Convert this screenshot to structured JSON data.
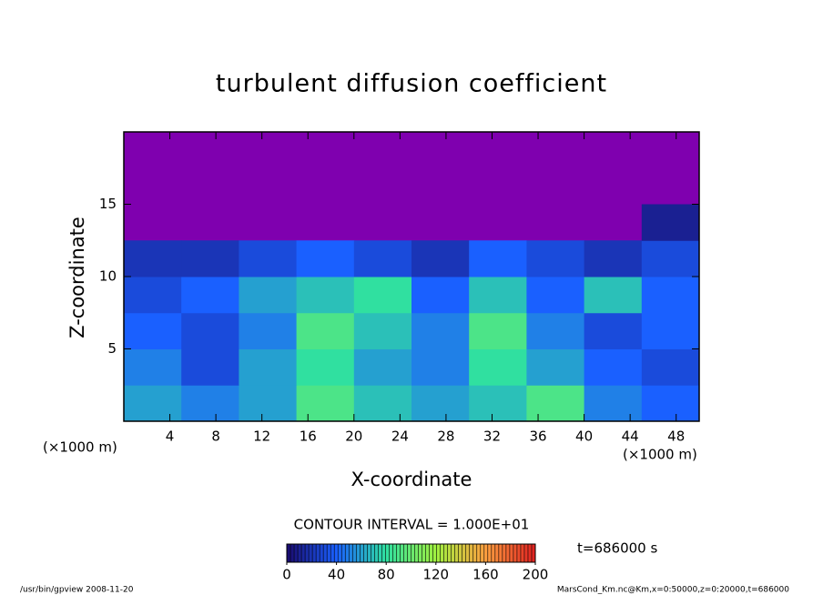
{
  "chart_data": {
    "type": "heatmap",
    "title": "turbulent diffusion coefficient",
    "x_label": "X-coordinate",
    "y_label": "Z-coordinate",
    "x_unit": "(×1000 m)",
    "y_unit": "(×1000 m)",
    "x": [
      2.5,
      7.5,
      12.5,
      17.5,
      22.5,
      27.5,
      32.5,
      37.5,
      42.5,
      47.5
    ],
    "y": [
      1.25,
      3.75,
      6.25,
      8.75,
      11.25,
      13.75,
      16.25,
      18.75
    ],
    "z": [
      [
        60,
        50,
        60,
        90,
        70,
        60,
        70,
        90,
        50,
        40
      ],
      [
        50,
        30,
        60,
        80,
        60,
        50,
        80,
        60,
        40,
        30
      ],
      [
        40,
        30,
        50,
        90,
        70,
        50,
        90,
        50,
        30,
        40
      ],
      [
        30,
        40,
        60,
        70,
        80,
        40,
        70,
        40,
        70,
        40
      ],
      [
        20,
        20,
        30,
        40,
        30,
        20,
        40,
        30,
        20,
        30
      ],
      [
        null,
        null,
        null,
        null,
        null,
        null,
        null,
        null,
        null,
        10
      ],
      [
        null,
        null,
        null,
        null,
        null,
        null,
        null,
        null,
        null,
        null
      ],
      [
        null,
        null,
        null,
        null,
        null,
        null,
        null,
        null,
        null,
        null
      ]
    ],
    "xlim": [
      0,
      50
    ],
    "ylim": [
      0,
      20
    ],
    "xticks": [
      4,
      8,
      12,
      16,
      20,
      24,
      28,
      32,
      36,
      40,
      44,
      48
    ],
    "yticks": [
      5,
      10,
      15
    ],
    "background_color": "#7f00af",
    "colorbar": {
      "title": "CONTOUR INTERVAL = 1.000E+01",
      "lim": [
        0,
        200
      ],
      "ticks": [
        0,
        40,
        80,
        120,
        160,
        200
      ],
      "colorscale": [
        [
          0,
          "#1a0a6e"
        ],
        [
          40,
          "#1a60ff"
        ],
        [
          80,
          "#30e0a0"
        ],
        [
          120,
          "#a0f040"
        ],
        [
          160,
          "#ffa040"
        ],
        [
          200,
          "#e02020"
        ]
      ]
    },
    "time_label": "t=686000 s",
    "footer_left": "/usr/bin/gpview  2008-11-20",
    "footer_right": "MarsCond_Km.nc@Km,x=0:50000,z=0:20000,t=686000"
  }
}
